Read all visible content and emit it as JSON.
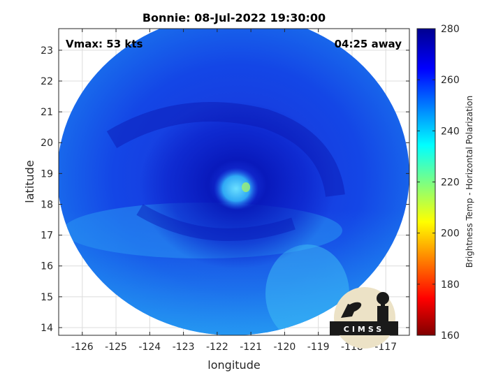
{
  "chart_data": {
    "type": "heatmap",
    "title": "Bonnie: 08-Jul-2022 19:30:00",
    "xlabel": "longitude",
    "ylabel": "latitude",
    "xlim": [
      -126.7,
      -116.3
    ],
    "ylim": [
      13.75,
      23.7
    ],
    "x_ticks": [
      -126,
      -125,
      -124,
      -123,
      -122,
      -121,
      -120,
      -119,
      -118,
      -117
    ],
    "y_ticks": [
      14,
      15,
      16,
      17,
      18,
      19,
      20,
      21,
      22,
      23
    ],
    "grid": true,
    "annotations": {
      "vmax": "Vmax: 53 kts",
      "time_offset": "04:25 away"
    },
    "storm_center": {
      "lon": -121.5,
      "lat": 18.5
    },
    "colorbar": {
      "label": "Brightness Temp - Horizontal Polarization",
      "range": [
        160,
        280
      ],
      "ticks": [
        160,
        180,
        200,
        220,
        240,
        260,
        280
      ],
      "colormap": "jet"
    }
  },
  "logo": {
    "text": "CIMSS"
  }
}
